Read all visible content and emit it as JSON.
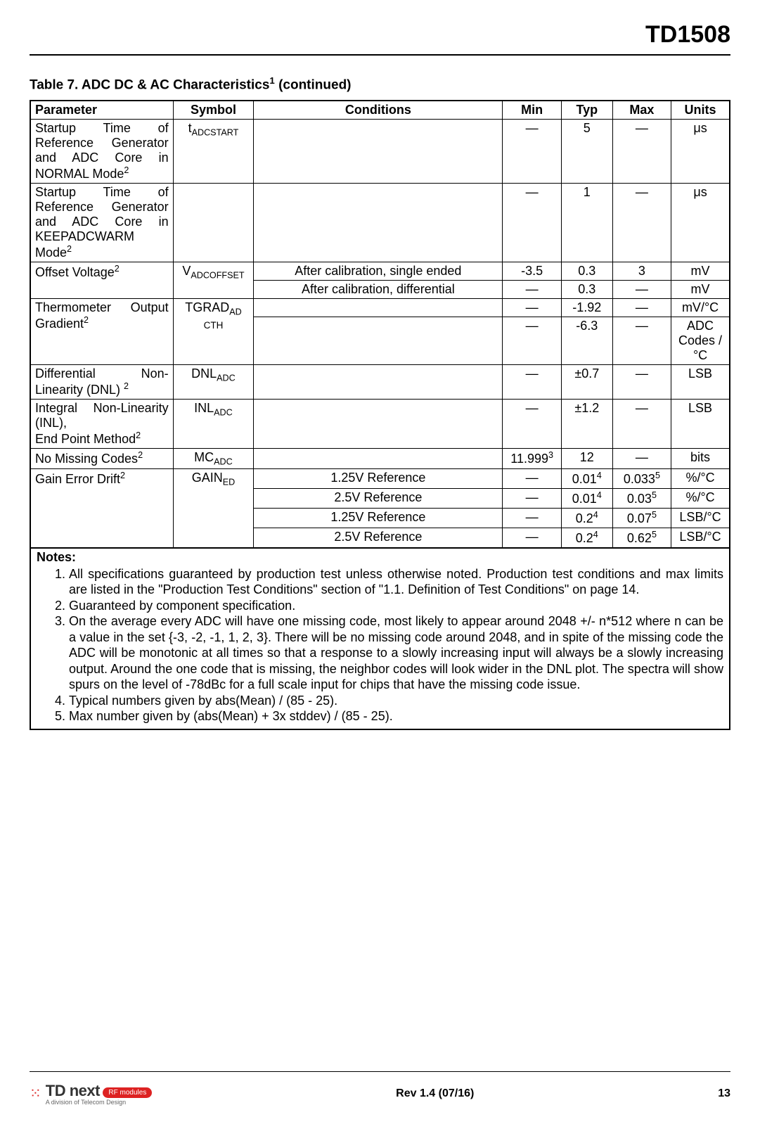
{
  "document": {
    "product_code": "TD1508",
    "table_title_prefix": "Table 7. ADC DC & AC Characteristics",
    "table_title_sup": "1",
    "table_title_suffix": " (continued)"
  },
  "headers": {
    "parameter": "Parameter",
    "symbol": "Symbol",
    "conditions": "Conditions",
    "min": "Min",
    "typ": "Typ",
    "max": "Max",
    "units": "Units"
  },
  "rows": [
    {
      "parameter_html": "Startup Time of Reference Generator and ADC Core in NORMAL Mode<span class='sup'>2</span>",
      "symbol_html": "t<span class='sub'>ADCSTART</span>",
      "conditions": "",
      "min": "—",
      "typ": "5",
      "max": "—",
      "units": "μs"
    },
    {
      "parameter_html": "Startup Time of Reference Generator and ADC Core in KEEPADCWARM Mode<span class='sup'>2</span>",
      "symbol_html": "",
      "conditions": "",
      "min": "—",
      "typ": "1",
      "max": "—",
      "units": "μs"
    },
    {
      "parameter_html": "Offset Voltage<span class='sup'>2</span>",
      "symbol_html": "V<span class='sub'>ADCOFFSET</span>",
      "param_rowspan": 2,
      "symbol_rowspan": 2,
      "cond_rows": [
        {
          "conditions": "After calibration, single ended",
          "min": "-3.5",
          "typ": "0.3",
          "max": "3",
          "units": "mV"
        },
        {
          "conditions": "After calibration, differential",
          "min": "—",
          "typ": "0.3",
          "max": "—",
          "units": "mV"
        }
      ]
    },
    {
      "parameter_html": "Thermometer Output Gradient<span class='sup'>2</span>",
      "symbol_html": "<span class='symbol-stack'>TGRAD<span class='sub'>AD</span><br><span style='font-size:0.75em'>CTH</span></span>",
      "param_rowspan": 2,
      "symbol_rowspan": 2,
      "cond_rows": [
        {
          "conditions": "",
          "min": "—",
          "typ": "-1.92",
          "max": "—",
          "units": "mV/°C"
        },
        {
          "conditions": "",
          "min": "—",
          "typ": "-6.3",
          "max": "—",
          "units": "ADC Codes / °C"
        }
      ]
    },
    {
      "parameter_html": "Differential Non-Linearity (DNL) <span class='sup'>2</span>",
      "symbol_html": "DNL<span class='sub'>ADC</span>",
      "conditions": "",
      "min": "—",
      "typ": "±0.7",
      "max": "—",
      "units": "LSB"
    },
    {
      "parameter_html": "Integral Non-Linearity (INL),<br>End Point Method<span class='sup'>2</span>",
      "symbol_html": "INL<span class='sub'>ADC</span>",
      "conditions": "",
      "min": "—",
      "typ": "±1.2",
      "max": "—",
      "units": "LSB"
    },
    {
      "parameter_html": "No Missing Codes<span class='sup'>2</span>",
      "symbol_html": "MC<span class='sub'>ADC</span>",
      "conditions": "",
      "min": "11.999<span class='sup'>3</span>",
      "typ": "12",
      "max": "—",
      "units": "bits"
    },
    {
      "parameter_html": "Gain Error Drift<span class='sup'>2</span>",
      "symbol_html": "GAIN<span class='sub'>ED</span>",
      "param_rowspan": 4,
      "symbol_rowspan": 4,
      "cond_rows": [
        {
          "conditions": "1.25V Reference",
          "min": "—",
          "typ": "0.01<span class='sup'>4</span>",
          "max": "0.033<span class='sup'>5</span>",
          "units": "%/°C"
        },
        {
          "conditions": "2.5V Reference",
          "min": "—",
          "typ": "0.01<span class='sup'>4</span>",
          "max": "0.03<span class='sup'>5</span>",
          "units": "%/°C"
        },
        {
          "conditions": "1.25V Reference",
          "min": "—",
          "typ": "0.2<span class='sup'>4</span>",
          "max": "0.07<span class='sup'>5</span>",
          "units": "LSB/°C"
        },
        {
          "conditions": "2.5V Reference",
          "min": "—",
          "typ": "0.2<span class='sup'>4</span>",
          "max": "0.62<span class='sup'>5</span>",
          "units": "LSB/°C"
        }
      ]
    }
  ],
  "notes": {
    "title": "Notes:",
    "items": [
      "All specifications guaranteed by production test unless otherwise noted. Production test conditions and max limits are listed in the \"Production Test Conditions\" section of \"1.1. Definition of Test Conditions\" on page 14.",
      "Guaranteed by component specification.",
      "On the average every ADC will have one missing code, most likely to appear around 2048 +/- n*512 where n can be a value in the set {-3, -2, -1, 1, 2, 3}. There will be no missing code around 2048, and in spite of the missing code the ADC will be monotonic at all times so that a response to a slowly increasing input will always be a slowly increasing output. Around the one code that is missing, the neighbor codes will look wider in the DNL plot. The spectra will show spurs on the level of -78dBc for a full scale input for chips that have the missing code issue.",
      "Typical numbers given by abs(Mean) / (85 - 25).",
      "Max number given by (abs(Mean) + 3x stddev) / (85 - 25)."
    ]
  },
  "footer": {
    "logo_main": "TD next",
    "logo_badge": "RF modules",
    "logo_sub": "A division of Telecom Design",
    "revision": "Rev 1.4 (07/16)",
    "page": "13"
  },
  "colors": {
    "text": "#000000",
    "background": "#ffffff",
    "rule": "#000000",
    "logo_accent": "#d22222"
  }
}
